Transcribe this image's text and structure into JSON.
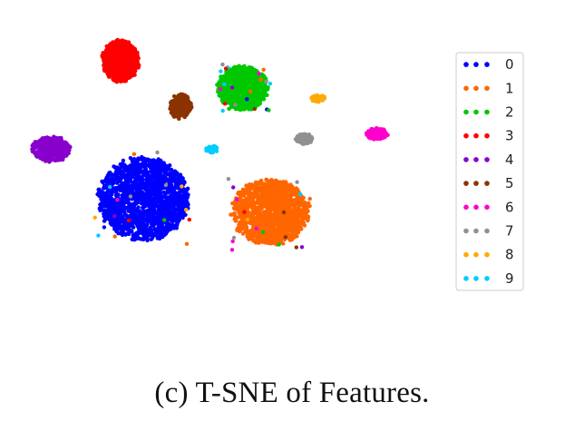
{
  "chart_data": {
    "type": "scatter",
    "title": "",
    "xlabel": "",
    "ylabel": "",
    "axes_visible": false,
    "grid": false,
    "legend_position": "right",
    "legend": [
      "0",
      "1",
      "2",
      "3",
      "4",
      "5",
      "6",
      "7",
      "8",
      "9"
    ],
    "series": [
      {
        "name": "0",
        "color": "#0000ff",
        "clusters": [
          {
            "cx": -4.0,
            "cy": -2.1,
            "rx": 2.95,
            "ry": 2.45,
            "n": 1700
          }
        ]
      },
      {
        "name": "1",
        "color": "#ff6600",
        "clusters": [
          {
            "cx": 4.2,
            "cy": -2.9,
            "rx": 2.5,
            "ry": 1.95,
            "n": 1300
          }
        ]
      },
      {
        "name": "2",
        "color": "#00c800",
        "clusters": [
          {
            "cx": 2.4,
            "cy": 4.4,
            "rx": 1.65,
            "ry": 1.3,
            "n": 850
          }
        ]
      },
      {
        "name": "3",
        "color": "#ff0000",
        "clusters": [
          {
            "cx": -5.5,
            "cy": 6.0,
            "rx": 1.2,
            "ry": 1.25,
            "n": 650
          }
        ]
      },
      {
        "name": "4",
        "color": "#8800cc",
        "clusters": [
          {
            "cx": -10.0,
            "cy": 0.8,
            "rx": 1.25,
            "ry": 0.75,
            "n": 380
          }
        ]
      },
      {
        "name": "5",
        "color": "#8b3300",
        "clusters": [
          {
            "cx": -1.6,
            "cy": 3.3,
            "rx": 0.7,
            "ry": 0.75,
            "n": 190
          }
        ]
      },
      {
        "name": "6",
        "color": "#ff00cc",
        "clusters": [
          {
            "cx": 11.1,
            "cy": 1.7,
            "rx": 0.7,
            "ry": 0.35,
            "n": 120
          }
        ]
      },
      {
        "name": "7",
        "color": "#909090",
        "clusters": [
          {
            "cx": 6.4,
            "cy": 1.4,
            "rx": 0.55,
            "ry": 0.32,
            "n": 110
          }
        ]
      },
      {
        "name": "8",
        "color": "#ffaa00",
        "clusters": [
          {
            "cx": 7.3,
            "cy": 3.8,
            "rx": 0.45,
            "ry": 0.22,
            "n": 60
          }
        ]
      },
      {
        "name": "9",
        "color": "#00ccff",
        "clusters": [
          {
            "cx": 0.4,
            "cy": 0.8,
            "rx": 0.4,
            "ry": 0.22,
            "n": 45
          }
        ]
      }
    ],
    "xlim": [
      -12,
      15
    ],
    "ylim": [
      -7,
      8
    ]
  },
  "caption": "(c) T-SNE of Features."
}
